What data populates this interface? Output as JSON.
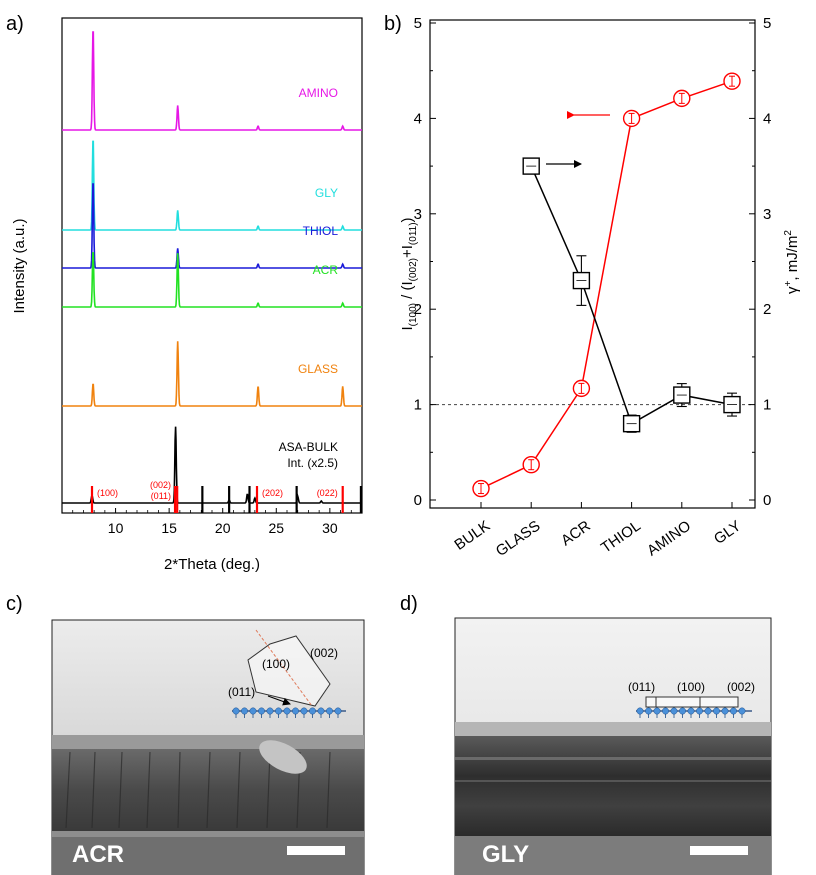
{
  "panel_labels": {
    "a": "a)",
    "b": "b)",
    "c": "c)",
    "d": "d)"
  },
  "chart_data": [
    {
      "type": "line",
      "panel": "a",
      "xlabel": "2*Theta (deg.)",
      "ylabel": "Intensity (a.u.)",
      "xlim": [
        5,
        33
      ],
      "xticks": [
        "10",
        "15",
        "20",
        "25",
        "30"
      ],
      "grid": false,
      "series": [
        {
          "name": "AMINO",
          "color": "#e617e6",
          "baseline": 6,
          "peaks": [
            {
              "x": 7.9,
              "h": 1.05
            },
            {
              "x": 15.8,
              "h": 0.25
            },
            {
              "x": 23.3,
              "h": 0.04
            },
            {
              "x": 31.2,
              "h": 0.04
            }
          ]
        },
        {
          "name": "GLY",
          "color": "#22dede",
          "baseline": 5,
          "peaks": [
            {
              "x": 7.9,
              "h": 0.95
            },
            {
              "x": 15.8,
              "h": 0.2
            },
            {
              "x": 23.3,
              "h": 0.04
            },
            {
              "x": 31.2,
              "h": 0.04
            }
          ]
        },
        {
          "name": "THIOL",
          "color": "#1a1ad9",
          "baseline": 4,
          "peaks": [
            {
              "x": 7.9,
              "h": 0.9
            },
            {
              "x": 15.8,
              "h": 0.2
            },
            {
              "x": 23.3,
              "h": 0.04
            },
            {
              "x": 31.2,
              "h": 0.04
            }
          ]
        },
        {
          "name": "ACR",
          "color": "#22e222",
          "baseline": 3,
          "peaks": [
            {
              "x": 7.9,
              "h": 0.58
            },
            {
              "x": 15.8,
              "h": 0.55
            },
            {
              "x": 23.3,
              "h": 0.04
            },
            {
              "x": 31.2,
              "h": 0.04
            }
          ]
        },
        {
          "name": "GLASS",
          "color": "#f0820e",
          "baseline": 2,
          "peaks": [
            {
              "x": 7.9,
              "h": 0.23
            },
            {
              "x": 15.8,
              "h": 0.66
            },
            {
              "x": 23.3,
              "h": 0.2
            },
            {
              "x": 31.2,
              "h": 0.2
            }
          ]
        },
        {
          "name": "ASA-BULK",
          "note": "Int. (x2.5)",
          "color": "#000000",
          "baseline": 1,
          "peaks": [
            {
              "x": 7.8,
              "h": 0.08
            },
            {
              "x": 15.6,
              "h": 0.78
            },
            {
              "x": 20.6,
              "h": 0.03
            },
            {
              "x": 22.3,
              "h": 0.09
            },
            {
              "x": 23.0,
              "h": 0.05
            },
            {
              "x": 27.0,
              "h": 0.07
            },
            {
              "x": 29.2,
              "h": 0.02
            }
          ]
        }
      ],
      "reference_lines": [
        {
          "x": 7.8,
          "color": "#ff0000",
          "label": "(100)"
        },
        {
          "x": 15.55,
          "color": "#ff0000",
          "label": "(002)\n(011)"
        },
        {
          "x": 15.75,
          "color": "#ff0000"
        },
        {
          "x": 18.1,
          "color": "#000000"
        },
        {
          "x": 20.6,
          "color": "#000000"
        },
        {
          "x": 22.5,
          "color": "#000000"
        },
        {
          "x": 23.2,
          "color": "#ff0000",
          "label": "(202)"
        },
        {
          "x": 26.9,
          "color": "#000000"
        },
        {
          "x": 31.2,
          "color": "#ff0000",
          "label": "(022)"
        },
        {
          "x": 32.9,
          "color": "#000000"
        }
      ]
    },
    {
      "type": "line",
      "panel": "b",
      "ylabel_left": "I(100) / (I(002)+I(011))",
      "ylabel_right": "γ+, mJ/m2",
      "categories": [
        "BULK",
        "GLASS",
        "ACR",
        "THIOL",
        "AMINO",
        "GLY"
      ],
      "ylim": [
        0,
        5
      ],
      "yticks": [
        "0",
        "1",
        "2",
        "3",
        "4",
        "5"
      ],
      "yticks_right": [
        "0",
        "1",
        "2",
        "3",
        "4",
        "5"
      ],
      "reference_y": 1,
      "series": [
        {
          "axis": "left",
          "color": "#ff0000",
          "marker": "circle",
          "points": [
            {
              "x": "BULK",
              "y": 0.12
            },
            {
              "x": "GLASS",
              "y": 0.37
            },
            {
              "x": "ACR",
              "y": 1.17
            },
            {
              "x": "THIOL",
              "y": 4.0
            },
            {
              "x": "AMINO",
              "y": 4.21
            },
            {
              "x": "GLY",
              "y": 4.39
            }
          ]
        },
        {
          "axis": "right",
          "color": "#000000",
          "marker": "square",
          "points": [
            {
              "x": "GLASS",
              "y": 3.5,
              "err": 0.05
            },
            {
              "x": "ACR",
              "y": 2.3,
              "err": 0.26
            },
            {
              "x": "THIOL",
              "y": 0.8,
              "err": 0.09
            },
            {
              "x": "AMINO",
              "y": 1.1,
              "err": 0.12
            },
            {
              "x": "GLY",
              "y": 1.0,
              "err": 0.12
            }
          ]
        }
      ]
    }
  ],
  "photos": {
    "c": {
      "label": "ACR",
      "schematic_labels": [
        "(100)",
        "(002)",
        "(011)"
      ]
    },
    "d": {
      "label": "GLY",
      "schematic_labels": [
        "(011)",
        "(100)",
        "(002)"
      ]
    }
  }
}
